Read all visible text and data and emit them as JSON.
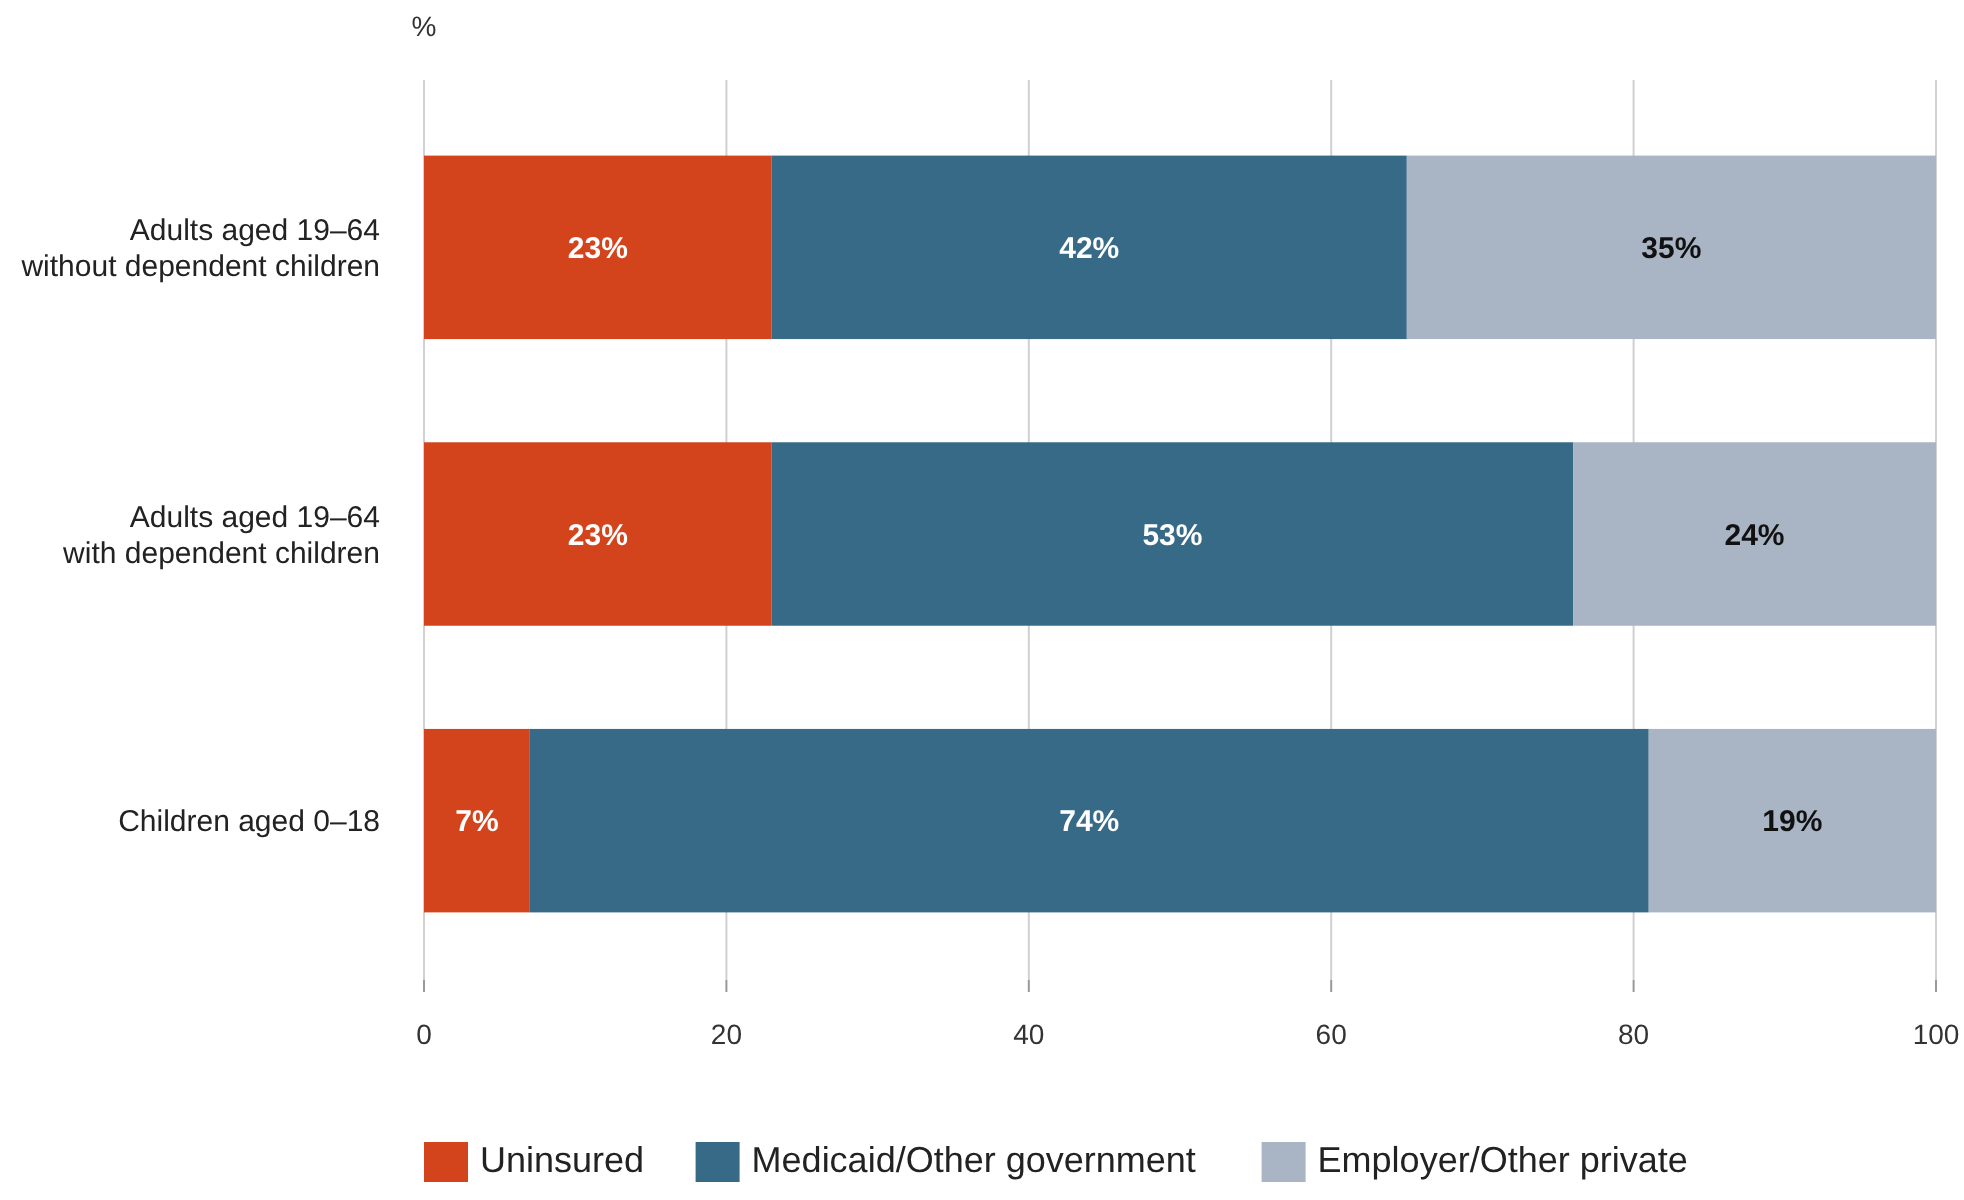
{
  "chart_data": {
    "type": "bar",
    "orientation": "horizontal",
    "stacked": true,
    "xlabel": "%",
    "categories": [
      "Adults aged 19–64\nwithout dependent children",
      "Adults aged 19–64\nwith dependent children",
      "Children aged 0–18"
    ],
    "series": [
      {
        "name": "Uninsured",
        "color": "#d4441c",
        "values": [
          23,
          23,
          7
        ],
        "value_labels": [
          "23%",
          "23%",
          "7%"
        ]
      },
      {
        "name": "Medicaid/Other government",
        "color": "#376a87",
        "values": [
          42,
          53,
          74
        ],
        "value_labels": [
          "42%",
          "53%",
          "74%"
        ]
      },
      {
        "name": "Employer/Other private",
        "color": "#a9b4c4",
        "values": [
          35,
          24,
          19
        ],
        "value_labels": [
          "35%",
          "24%",
          "19%"
        ]
      }
    ],
    "xlim": [
      0,
      100
    ],
    "xticks": [
      0,
      20,
      40,
      60,
      80,
      100
    ],
    "grid": "x",
    "legend": "bottom"
  }
}
